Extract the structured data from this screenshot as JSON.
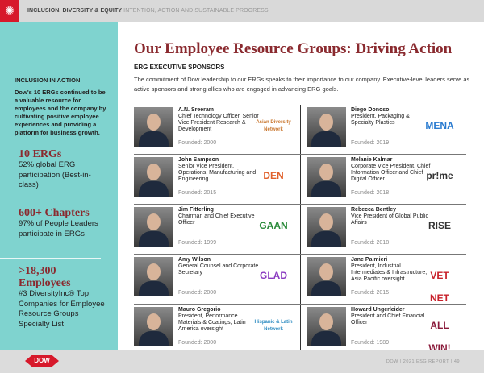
{
  "header": {
    "section": "INCLUSION, DIVERSITY & EQUITY",
    "subtitle": "INTENTION, ACTION AND SUSTAINABLE PROGRESS"
  },
  "sidebar": {
    "heading": "INCLUSION IN ACTION",
    "text": "Dow's 10 ERGs continued to be a valuable resource for employees and the company by cultivating positive employee experiences and providing a platform for business growth.",
    "stats": [
      {
        "big": "10 ERGs",
        "small": "52% global ERG participation (Best-in-class)"
      },
      {
        "big": "600+ Chapters",
        "small": "97% of People Leaders participate in ERGs"
      },
      {
        "big": ">18,300 Employees",
        "small": "#3 DiversityInc® Top Companies for Employee Resource Groups Specialty List"
      }
    ]
  },
  "main": {
    "title": "Our Employee Resource Groups: Driving Action",
    "subheading": "ERG EXECUTIVE SPONSORS",
    "intro": "The commitment of Dow leadership to our ERGs speaks to their importance to our company. Executive-level leaders serve as active sponsors and strong allies who are engaged in advancing ERG goals.",
    "sponsors": [
      {
        "name": "A.N. Sreeram",
        "role": "Chief Technology Officer, Senior Vice President Research & Development",
        "founded": "Founded: 2000",
        "erg": "Asian Diversity Network",
        "color": "#c8742a"
      },
      {
        "name": "Diego Donoso",
        "role": "President, Packaging & Specialty Plastics",
        "founded": "Founded: 2019",
        "erg": "MENA",
        "color": "#2a7bd0"
      },
      {
        "name": "John Sampson",
        "role": "Senior Vice President, Operations, Manufacturing and Engineering",
        "founded": "Founded: 2015",
        "erg": "DEN",
        "color": "#e0602a"
      },
      {
        "name": "Melanie Kalmar",
        "role": "Corporate Vice President, Chief Information Officer and Chief Digital Officer",
        "founded": "Founded: 2018",
        "erg": "pr!me",
        "color": "#333333"
      },
      {
        "name": "Jim Fitterling",
        "role": "Chairman and Chief Executive Officer",
        "founded": "Founded: 1999",
        "erg": "GAAN",
        "color": "#2a8a3a"
      },
      {
        "name": "Rebecca Bentley",
        "role": "Vice President of Global Public Affairs",
        "founded": "Founded: 2018",
        "erg": "RISE",
        "color": "#333333"
      },
      {
        "name": "Amy Wilson",
        "role": "General Counsel and Corporate Secretary",
        "founded": "Founded: 2000",
        "erg": "GLAD",
        "color": "#8a3ac0"
      },
      {
        "name": "Jane Palmieri",
        "role": "President, Industrial Intermediates & Infrastructure; Asia Pacific oversight",
        "founded": "Founded: 2015",
        "erg": "VET NET",
        "color": "#c8202a"
      },
      {
        "name": "Mauro Gregorio",
        "role": "President, Performance Materials & Coatings; Latin America oversight",
        "founded": "Founded: 2000",
        "erg": "Hispanic & Latin Network",
        "color": "#2a8ac0"
      },
      {
        "name": "Howard Ungerleider",
        "role": "President and Chief Financial Officer",
        "founded": "Founded: 1989",
        "erg": "ALL WIN!",
        "color": "#8a1a3a"
      }
    ]
  },
  "footer": {
    "logo": "DOW",
    "text": "DOW  |  2021 ESG REPORT  |  49"
  },
  "colors": {
    "accent": "#8a2a2f",
    "sidebar": "#7fd3cf",
    "brand": "#d7192b"
  }
}
